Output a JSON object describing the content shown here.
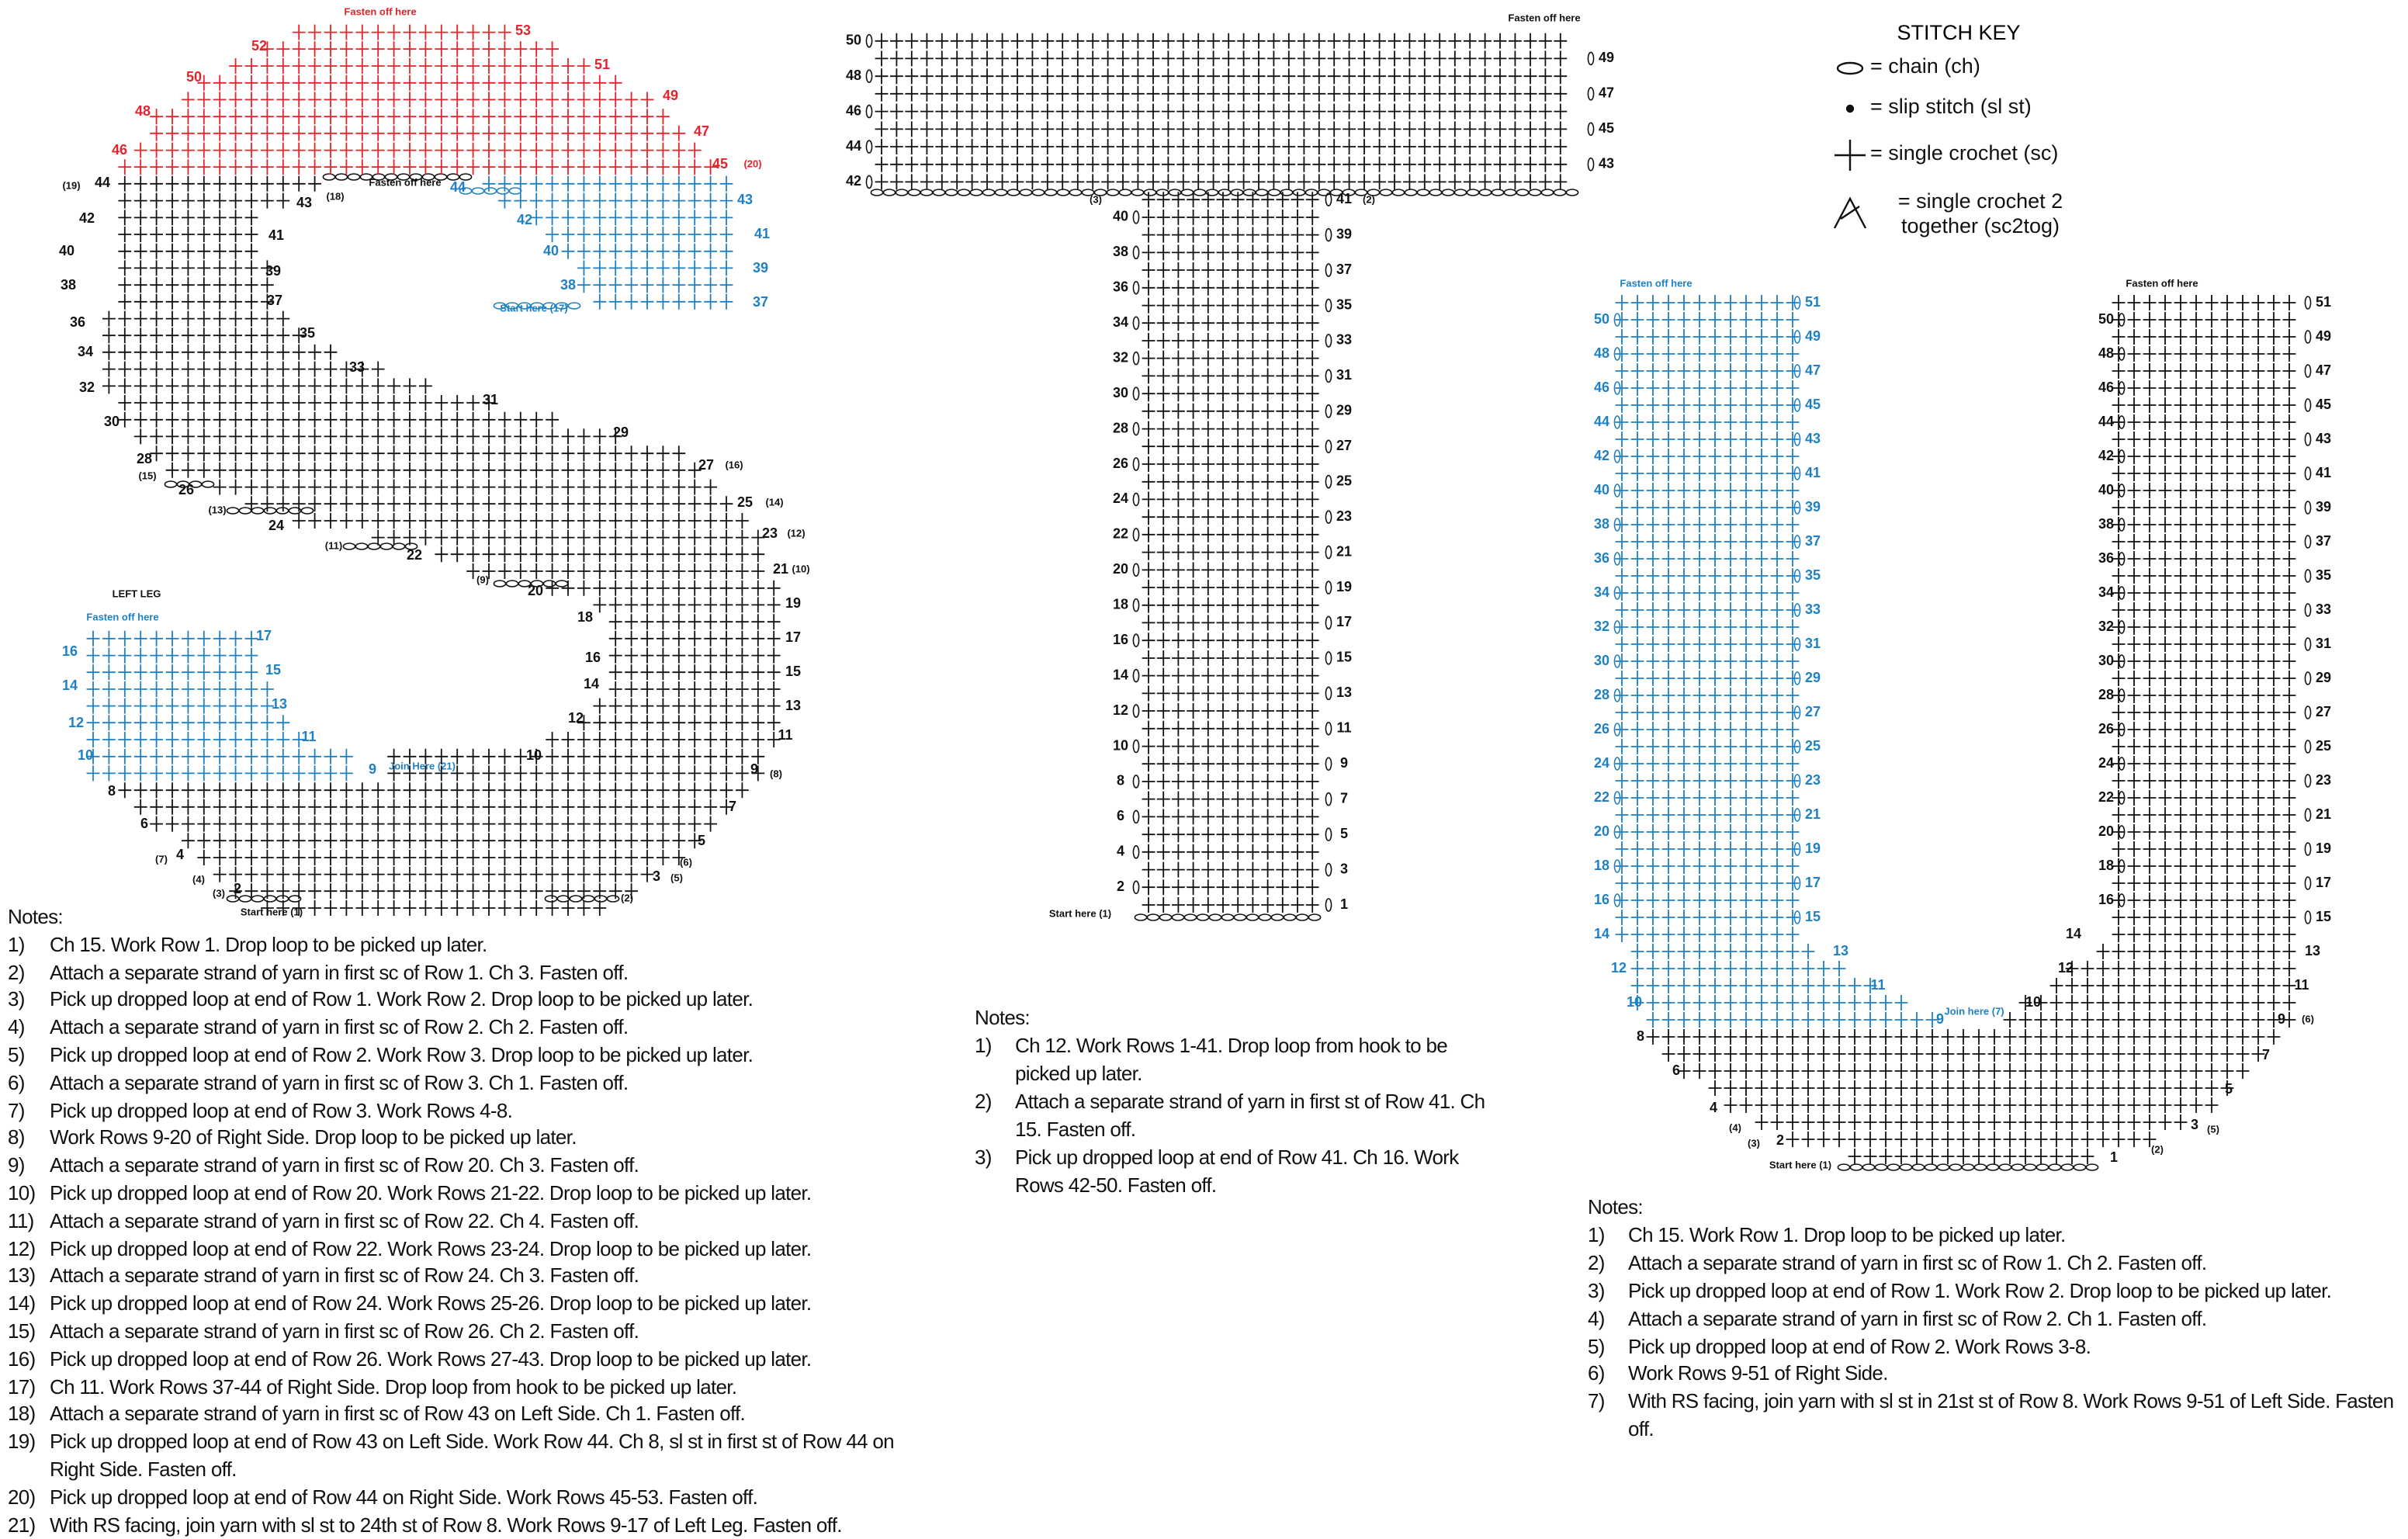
{
  "stitch_key": {
    "title": "STITCH KEY",
    "items": [
      "= chain (ch)",
      "= slip stitch (sl st)",
      "= single crochet (sc)",
      "= single crochet 2 together (sc2tog)"
    ]
  },
  "s_chart": {
    "labels": [
      "Fasten off here",
      "52",
      "53",
      "50",
      "51",
      "48",
      "49",
      "46",
      "47",
      "45",
      "(20)",
      "(19)",
      "44",
      "42",
      "40",
      "38",
      "36",
      "34",
      "32",
      "30",
      "28",
      "(15)",
      "26",
      "(13)",
      "24",
      "(11)",
      "22",
      "(9)",
      "20",
      "43",
      "(18)",
      "Fasten off here",
      "41",
      "39",
      "37",
      "35",
      "33",
      "31",
      "29",
      "27",
      "(16)",
      "25",
      "(14)",
      "23",
      "(12)",
      "21",
      "(10)",
      "19",
      "17",
      "15",
      "13",
      "11",
      "9",
      "(8)",
      "7",
      "5",
      "(6)",
      "3",
      "(5)",
      "(2)",
      "18",
      "16",
      "14",
      "12",
      "10",
      "8",
      "6",
      "(7)",
      "4",
      "(4)",
      "(3)",
      "2",
      "Start here (1)",
      "LEFT LEG",
      "44",
      "43",
      "42",
      "41",
      "40",
      "39",
      "38",
      "37",
      "Start here (17)",
      "Fasten off here",
      "16",
      "17",
      "15",
      "14",
      "13",
      "12",
      "11",
      "10",
      "9",
      "Join Here (21)"
    ],
    "notes_title": "Notes:",
    "notes": [
      [
        "1)",
        "Ch 15. Work Row 1. Drop loop to be picked up later."
      ],
      [
        "2)",
        "Attach a separate strand of yarn in first sc of Row 1. Ch 3. Fasten off."
      ],
      [
        "3)",
        "Pick up dropped loop at end of Row 1. Work Row 2. Drop loop to be picked up later."
      ],
      [
        "4)",
        "Attach a separate strand of yarn in first sc of Row 2. Ch 2. Fasten off."
      ],
      [
        "5)",
        "Pick up dropped loop at end of Row 2. Work Row 3. Drop loop to be picked up later."
      ],
      [
        "6)",
        "Attach a separate strand of yarn in first sc of Row 3. Ch 1. Fasten off."
      ],
      [
        "7)",
        "Pick up dropped loop at end of Row 3. Work Rows 4-8."
      ],
      [
        "8)",
        "Work Rows 9-20 of Right Side. Drop loop to be picked up later."
      ],
      [
        "9)",
        "Attach a separate strand of yarn in first sc of Row 20. Ch 3. Fasten off."
      ],
      [
        "10)",
        "Pick up dropped loop at end of Row 20. Work Rows 21-22. Drop loop to be picked up later."
      ],
      [
        "11)",
        "Attach a separate strand of yarn in first sc of Row 22. Ch 4. Fasten off."
      ],
      [
        "12)",
        "Pick up dropped loop at end of Row 22. Work Rows 23-24. Drop loop to be picked up later."
      ],
      [
        "13)",
        "Attach a separate strand of yarn in first sc of Row 24. Ch 3. Fasten off."
      ],
      [
        "14)",
        "Pick up dropped loop at end of Row 24. Work Rows 25-26. Drop loop to be picked up later."
      ],
      [
        "15)",
        "Attach a separate strand of yarn in first sc of Row 26. Ch 2. Fasten off."
      ],
      [
        "16)",
        "Pick up dropped loop at end of Row 26. Work Rows 27-43. Drop loop to be picked up later."
      ],
      [
        "17)",
        "Ch 11. Work Rows 37-44 of Right Side. Drop loop from hook to be picked up later."
      ],
      [
        "18)",
        "Attach a separate strand of yarn in first sc of Row 43 on Left Side. Ch 1. Fasten off."
      ],
      [
        "19)",
        "Pick up dropped loop at end of Row 43 on Left Side. Work Row 44. Ch 8, sl st in first st of Row 44 on Right Side. Fasten off."
      ],
      [
        "20)",
        "Pick up dropped loop at end of Row 44 on Right Side. Work Rows 45-53. Fasten off."
      ],
      [
        "21)",
        "With RS facing, join yarn with sl st to 24th st of Row 8. Work Rows 9-17 of Left Leg. Fasten off."
      ]
    ]
  },
  "t_chart": {
    "left_rows": [
      2,
      4,
      6,
      8,
      10,
      12,
      14,
      16,
      18,
      20,
      22,
      24,
      26,
      28,
      30,
      32,
      34,
      36,
      38,
      40,
      42,
      44,
      46,
      48,
      50
    ],
    "right_rows": [
      1,
      3,
      5,
      7,
      9,
      11,
      13,
      15,
      17,
      19,
      21,
      23,
      25,
      27,
      29,
      31,
      33,
      35,
      37,
      39,
      41,
      43,
      45,
      47,
      49
    ],
    "labels": [
      "Fasten off here",
      "(3)",
      "(2)",
      "Start here (1)"
    ],
    "notes_title": "Notes:",
    "notes": [
      [
        "1)",
        "Ch 12. Work Rows 1-41. Drop loop from hook to be picked up later."
      ],
      [
        "2)",
        "Attach a separate strand of yarn in first st of Row 41. Ch 15. Fasten off."
      ],
      [
        "3)",
        "Pick up dropped loop at end of Row 41. Ch 16. Work Rows 42-50. Fasten off."
      ]
    ]
  },
  "u_chart": {
    "left_column": {
      "left_rows": [
        10,
        12,
        14,
        16,
        18,
        20,
        22,
        24,
        26,
        28,
        30,
        32,
        34,
        36,
        38,
        40,
        42,
        44,
        46,
        48,
        50
      ],
      "right_rows": [
        9,
        11,
        13,
        15,
        17,
        19,
        21,
        23,
        25,
        27,
        29,
        31,
        33,
        35,
        37,
        39,
        41,
        43,
        45,
        47,
        49,
        51
      ]
    },
    "right_column": {
      "left_rows": [
        10,
        12,
        14,
        16,
        18,
        20,
        22,
        24,
        26,
        28,
        30,
        32,
        34,
        36,
        38,
        40,
        42,
        44,
        46,
        48,
        50
      ],
      "right_rows": [
        9,
        11,
        13,
        15,
        17,
        19,
        21,
        23,
        25,
        27,
        29,
        31,
        33,
        35,
        37,
        39,
        41,
        43,
        45,
        47,
        49,
        51
      ]
    },
    "labels": [
      "Fasten off here",
      "Fasten off here",
      "Join here (7)",
      "8",
      "6",
      "4",
      "(4)",
      "(3)",
      "2",
      "Start here (1)",
      "7",
      "5",
      "3",
      "(5)",
      "(2)",
      "1",
      "(6)"
    ],
    "notes_title": "Notes:",
    "notes": [
      [
        "1)",
        "Ch 15. Work Row 1. Drop loop to be picked up later."
      ],
      [
        "2)",
        "Attach a separate strand of yarn in first sc of Row 1. Ch 2. Fasten off."
      ],
      [
        "3)",
        "Pick up dropped loop at end of Row 1. Work Row 2. Drop loop to be picked up later."
      ],
      [
        "4)",
        "Attach a separate strand of yarn in first sc of Row 2. Ch 1. Fasten off."
      ],
      [
        "5)",
        "Pick up dropped loop at end of Row 2. Work Rows 3-8."
      ],
      [
        "6)",
        "Work Rows 9-51 of Right Side."
      ],
      [
        "7)",
        "With RS facing, join yarn with sl st in 21st st of Row 8. Work Rows 9-51 of Left Side. Fasten off."
      ]
    ]
  }
}
